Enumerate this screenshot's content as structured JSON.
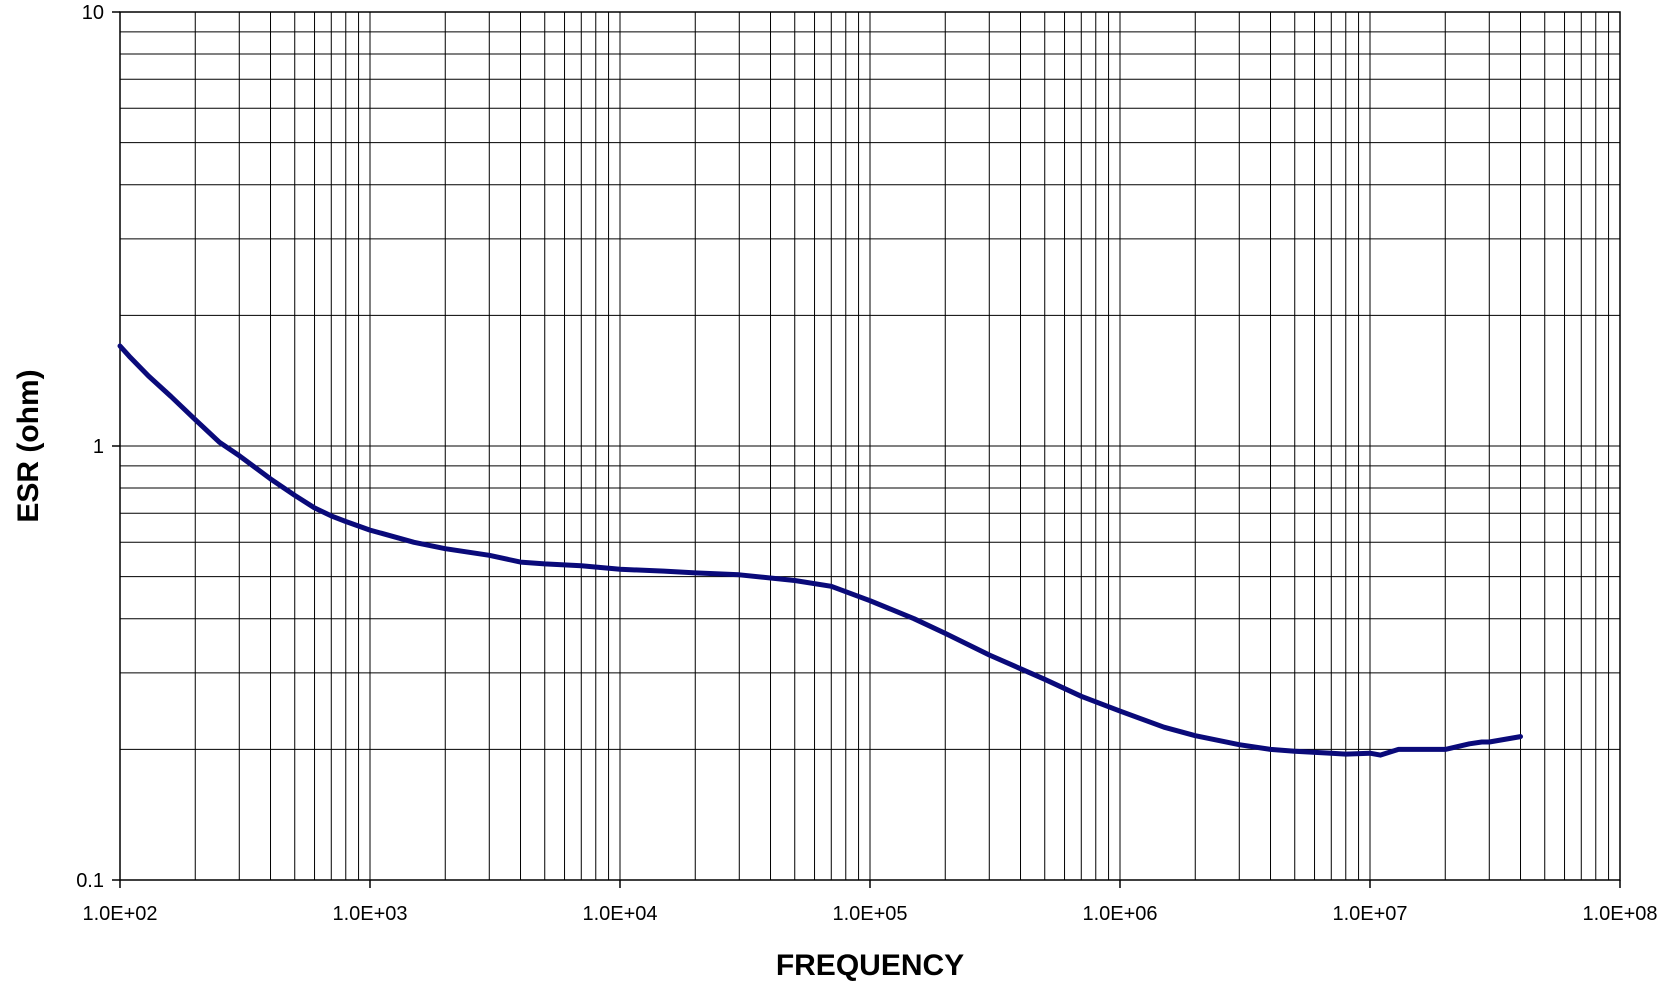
{
  "chart_data": {
    "type": "line",
    "title": "",
    "xlabel": "FREQUENCY",
    "ylabel": "ESR (ohm)",
    "x_scale": "log",
    "y_scale": "log",
    "xlim": [
      100,
      100000000
    ],
    "ylim": [
      0.1,
      10
    ],
    "x_ticks": [
      100,
      1000,
      10000,
      100000,
      1000000,
      10000000,
      100000000
    ],
    "x_tick_labels": [
      "1.0E+02",
      "1.0E+03",
      "1.0E+04",
      "1.0E+05",
      "1.0E+06",
      "1.0E+07",
      "1.0E+08"
    ],
    "y_ticks": [
      0.1,
      1,
      10
    ],
    "y_tick_labels": [
      "0.1",
      "1",
      "10"
    ],
    "grid": true,
    "legend": "none",
    "colors": {
      "series": "#0a0a7a",
      "grid": "#000000",
      "background": "#ffffff"
    },
    "series": [
      {
        "x": [
          100,
          110,
          130,
          160,
          200,
          250,
          300,
          400,
          500,
          600,
          700,
          800,
          1000,
          1500,
          2000,
          3000,
          4000,
          5000,
          7000,
          10000,
          15000,
          20000,
          30000,
          50000,
          70000,
          100000,
          150000,
          200000,
          300000,
          500000,
          700000,
          1000000,
          1500000,
          2000000,
          3000000,
          4000000,
          5000000,
          7000000,
          8000000,
          10000000,
          11000000,
          13000000,
          15000000,
          20000000,
          25000000,
          28000000,
          30000000,
          40000000
        ],
        "y": [
          1.7,
          1.6,
          1.45,
          1.3,
          1.15,
          1.02,
          0.95,
          0.84,
          0.77,
          0.72,
          0.69,
          0.67,
          0.64,
          0.6,
          0.58,
          0.56,
          0.54,
          0.535,
          0.53,
          0.52,
          0.515,
          0.51,
          0.505,
          0.49,
          0.475,
          0.44,
          0.4,
          0.37,
          0.33,
          0.29,
          0.265,
          0.245,
          0.225,
          0.215,
          0.205,
          0.2,
          0.198,
          0.196,
          0.195,
          0.196,
          0.194,
          0.2,
          0.2,
          0.2,
          0.206,
          0.208,
          0.208,
          0.214
        ]
      }
    ]
  }
}
